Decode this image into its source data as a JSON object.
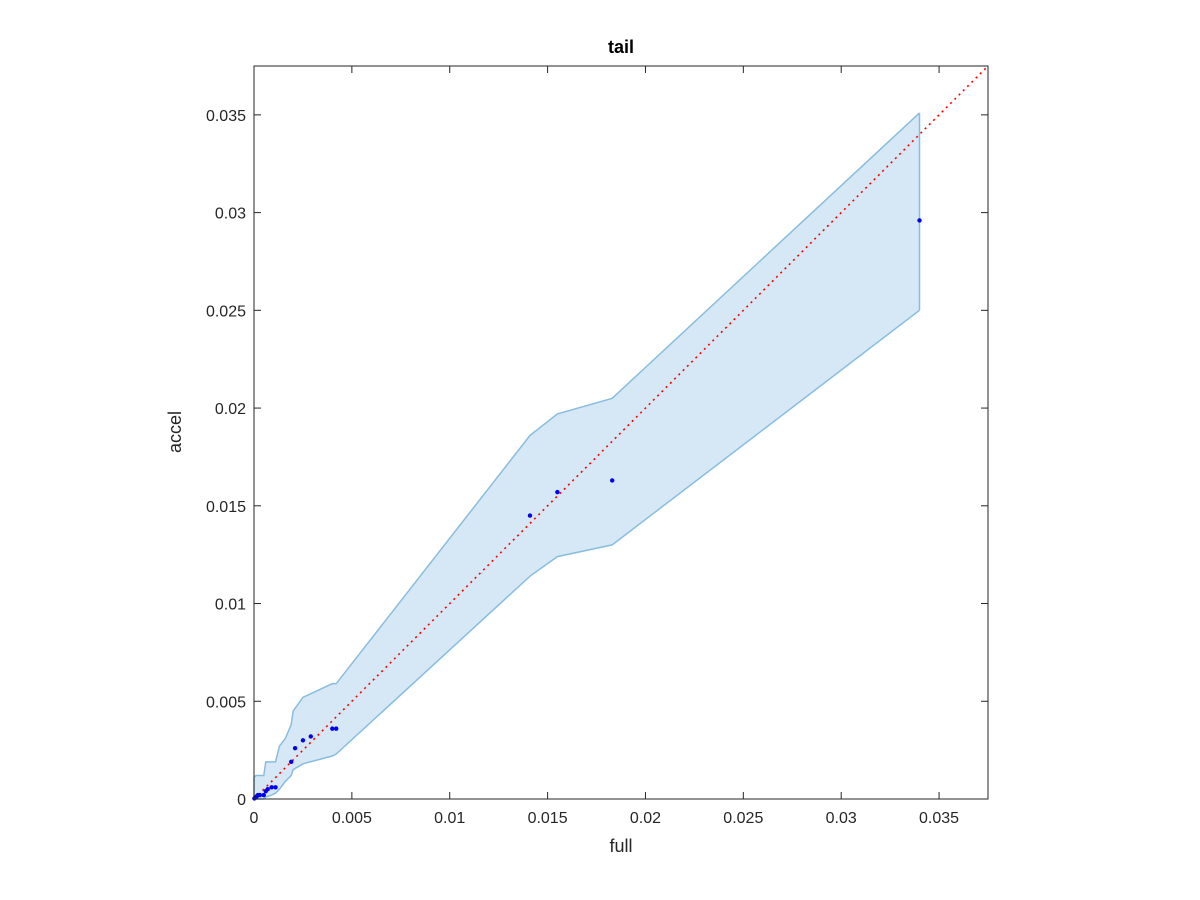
{
  "chart_data": {
    "type": "scatter",
    "title": "tail",
    "xlabel": "full",
    "ylabel": "accel",
    "xlim": [
      0,
      0.0375
    ],
    "ylim": [
      0,
      0.0375
    ],
    "xticks": [
      0,
      0.005,
      0.01,
      0.015,
      0.02,
      0.025,
      0.03,
      0.035
    ],
    "yticks": [
      0,
      0.005,
      0.01,
      0.015,
      0.02,
      0.025,
      0.03,
      0.035
    ],
    "xtick_labels": [
      "0",
      "0.005",
      "0.01",
      "0.015",
      "0.02",
      "0.025",
      "0.03",
      "0.035"
    ],
    "ytick_labels": [
      "0",
      "0.005",
      "0.01",
      "0.015",
      "0.02",
      "0.025",
      "0.03",
      "0.035"
    ],
    "grid": false,
    "colors": {
      "points": "#0000ee",
      "band_fill": "#d6e8f5",
      "band_edge": "#88bde0",
      "reference": "#ff0000",
      "axes": "#262626"
    },
    "points": {
      "x": [
        2e-05,
        5e-05,
        0.0001,
        0.00015,
        0.0002,
        0.0003,
        0.0005,
        0.0006,
        0.0007,
        0.0009,
        0.0011,
        0.0019,
        0.0021,
        0.0025,
        0.0029,
        0.004,
        0.0042,
        0.0141,
        0.0155,
        0.0183,
        0.034
      ],
      "y": [
        3e-05,
        6e-05,
        0.0001,
        0.00015,
        0.0002,
        0.0002,
        0.0002,
        0.0004,
        0.0005,
        0.0006,
        0.0006,
        0.0019,
        0.0026,
        0.003,
        0.0032,
        0.0036,
        0.0036,
        0.0145,
        0.0157,
        0.0163,
        0.0296
      ]
    },
    "band": {
      "upper": {
        "x": [
          0,
          0.0001,
          0.0005,
          0.0006,
          0.0011,
          0.0013,
          0.0016,
          0.0019,
          0.002,
          0.0025,
          0.004,
          0.0042,
          0.0141,
          0.0155,
          0.0183,
          0.034
        ],
        "y": [
          0.0011,
          0.0012,
          0.0012,
          0.0019,
          0.0019,
          0.0027,
          0.0031,
          0.0038,
          0.0045,
          0.0052,
          0.0059,
          0.0059,
          0.0186,
          0.0197,
          0.0205,
          0.0351
        ]
      },
      "lower": {
        "x": [
          0,
          0.0005,
          0.0006,
          0.0009,
          0.0011,
          0.0013,
          0.0016,
          0.0019,
          0.002,
          0.0025,
          0.004,
          0.0042,
          0.0141,
          0.0155,
          0.0183,
          0.034
        ],
        "y": [
          0,
          0,
          0.0001,
          0.0002,
          0.0003,
          0.0005,
          0.0009,
          0.0012,
          0.0015,
          0.0018,
          0.0022,
          0.0023,
          0.0114,
          0.0124,
          0.013,
          0.025
        ]
      }
    },
    "reference_line": {
      "x": [
        0,
        0.0375
      ],
      "y": [
        0,
        0.0375
      ],
      "style": "dotted"
    }
  }
}
